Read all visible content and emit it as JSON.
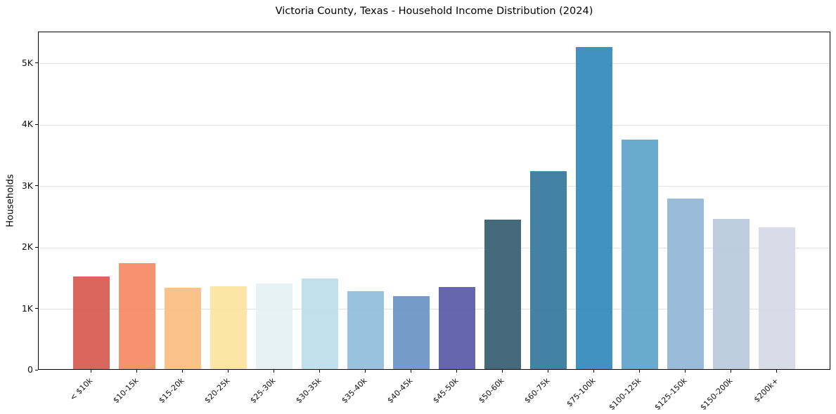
{
  "chart_data": {
    "type": "bar",
    "title": "Victoria County, Texas - Household Income Distribution (2024)",
    "xlabel": "",
    "ylabel": "Households",
    "categories": [
      "< $10k",
      "$10-15k",
      "$15-20k",
      "$20-25k",
      "$25-30k",
      "$30-35k",
      "$35-40k",
      "$40-45k",
      "$45-50k",
      "$50-60k",
      "$60-75k",
      "$75-100k",
      "$100-125k",
      "$125-150k",
      "$150-200k",
      "$200k+"
    ],
    "values": [
      1515,
      1725,
      1330,
      1355,
      1400,
      1470,
      1270,
      1195,
      1340,
      2435,
      3225,
      5250,
      3735,
      2780,
      2450,
      2315
    ],
    "bar_colors": [
      "#d75b52",
      "#f58a65",
      "#fbbd80",
      "#fde3a0",
      "#e4f1f4",
      "#bcdeec",
      "#92bcdc",
      "#6b93c6",
      "#5a5aa8",
      "#375f72",
      "#35789c",
      "#348abc",
      "#5fa4c9",
      "#92b7d8",
      "#b9c9de",
      "#d7d8e7"
    ],
    "yticks": {
      "values": [
        0,
        1000,
        2000,
        3000,
        4000,
        5000
      ],
      "labels": [
        "0",
        "1K",
        "2K",
        "3K",
        "4K",
        "5K"
      ]
    },
    "ylim": [
      0,
      5510
    ],
    "grid": "horizontal",
    "legend": "none",
    "background_color": "#ffffff",
    "spine_color": "#000000",
    "gridline_color": "#e0e0e0"
  }
}
